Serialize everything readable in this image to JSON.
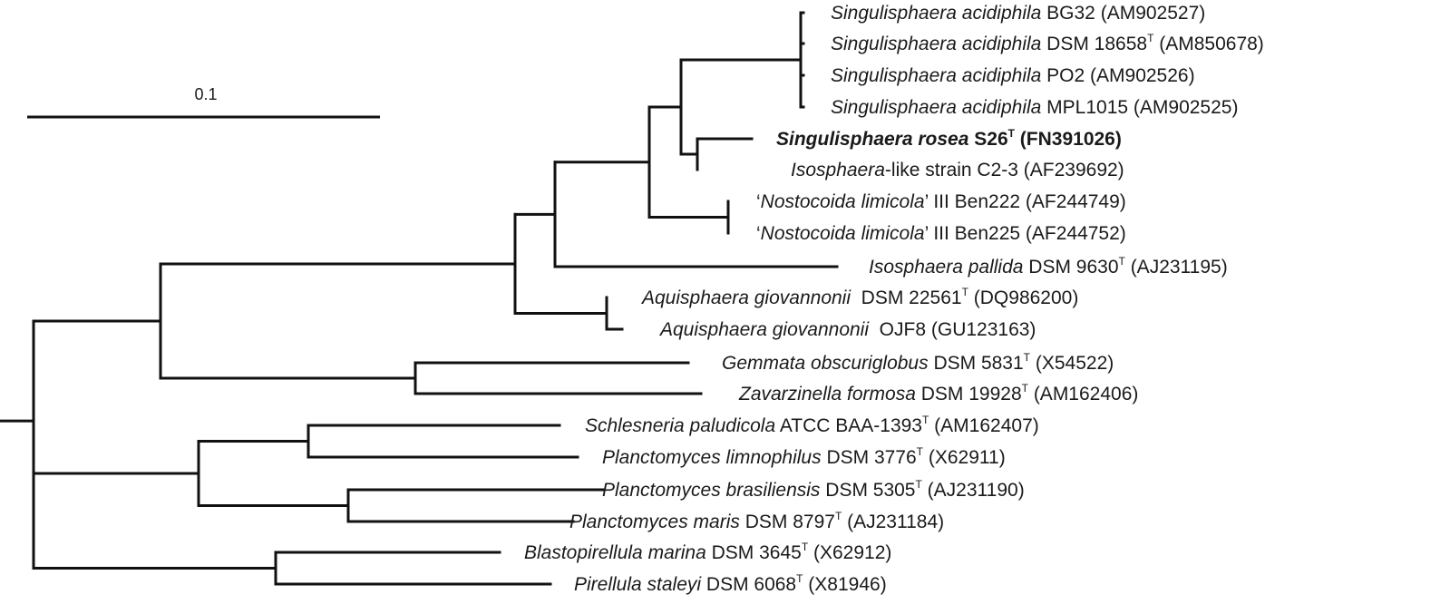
{
  "scale_bar": {
    "label": "0.1",
    "value": 0.1
  },
  "taxa": [
    {
      "id": "t1",
      "name": "Singulisphaera acidiphila",
      "rest": " BG32 (AM902527)"
    },
    {
      "id": "t2",
      "name": "Singulisphaera acidiphila",
      "rest": " DSM 18658",
      "sup": "T",
      "acc": " (AM850678)"
    },
    {
      "id": "t3",
      "name": "Singulisphaera acidiphila",
      "rest": " PO2 (AM902526)"
    },
    {
      "id": "t4",
      "name": "Singulisphaera acidiphila",
      "rest": " MPL1015 (AM902525)"
    },
    {
      "id": "t5",
      "name": "Singulisphaera rosea",
      "rest": " S26",
      "sup": "T",
      "acc": " (FN391026)",
      "bold": true
    },
    {
      "id": "t6",
      "name": "Isosphaera",
      "rest": "-like strain C2-3 (AF239692)"
    },
    {
      "id": "t7",
      "pre": "‘",
      "name": "Nostocoida limicola",
      "rest": "’ III Ben222 (AF244749)"
    },
    {
      "id": "t8",
      "pre": "‘",
      "name": "Nostocoida limicola",
      "rest": "’ III Ben225 (AF244752)"
    },
    {
      "id": "t9",
      "name": "Isosphaera pallida",
      "rest": " DSM 9630",
      "sup": "T",
      "acc": " (AJ231195)"
    },
    {
      "id": "t10",
      "name": "Aquisphaera giovannonii",
      "rest": "  DSM 22561",
      "sup": "T",
      "acc": " (DQ986200)"
    },
    {
      "id": "t11",
      "name": "Aquisphaera giovannonii",
      "rest": "  OJF8 (GU123163)"
    },
    {
      "id": "t12",
      "name": "Gemmata obscuriglobus",
      "rest": " DSM 5831",
      "sup": "T",
      "acc": " (X54522)"
    },
    {
      "id": "t13",
      "name": "Zavarzinella formosa",
      "rest": " DSM 19928",
      "sup": "T",
      "acc": " (AM162406)"
    },
    {
      "id": "t14",
      "name": "Schlesneria paludicola",
      "rest": " ATCC BAA-1393",
      "sup": "T",
      "acc": " (AM162407)"
    },
    {
      "id": "t15",
      "name": "Planctomyces limnophilus",
      "rest": " DSM 3776",
      "sup": "T",
      "acc": " (X62911)"
    },
    {
      "id": "t16",
      "name": "Planctomyces brasiliensis",
      "rest": " DSM 5305",
      "sup": "T",
      "acc": " (AJ231190)"
    },
    {
      "id": "t17",
      "name": "Planctomyces maris",
      "rest": " DSM 8797",
      "sup": "T",
      "acc": " (AJ231184)"
    },
    {
      "id": "t18",
      "name": "Blastopirellula marina",
      "rest": " DSM 3645",
      "sup": "T",
      "acc": " (X62912)"
    },
    {
      "id": "t19",
      "name": "Pirellula staleyi",
      "rest": " DSM 6068",
      "sup": "T",
      "acc": " (X81946)"
    }
  ]
}
